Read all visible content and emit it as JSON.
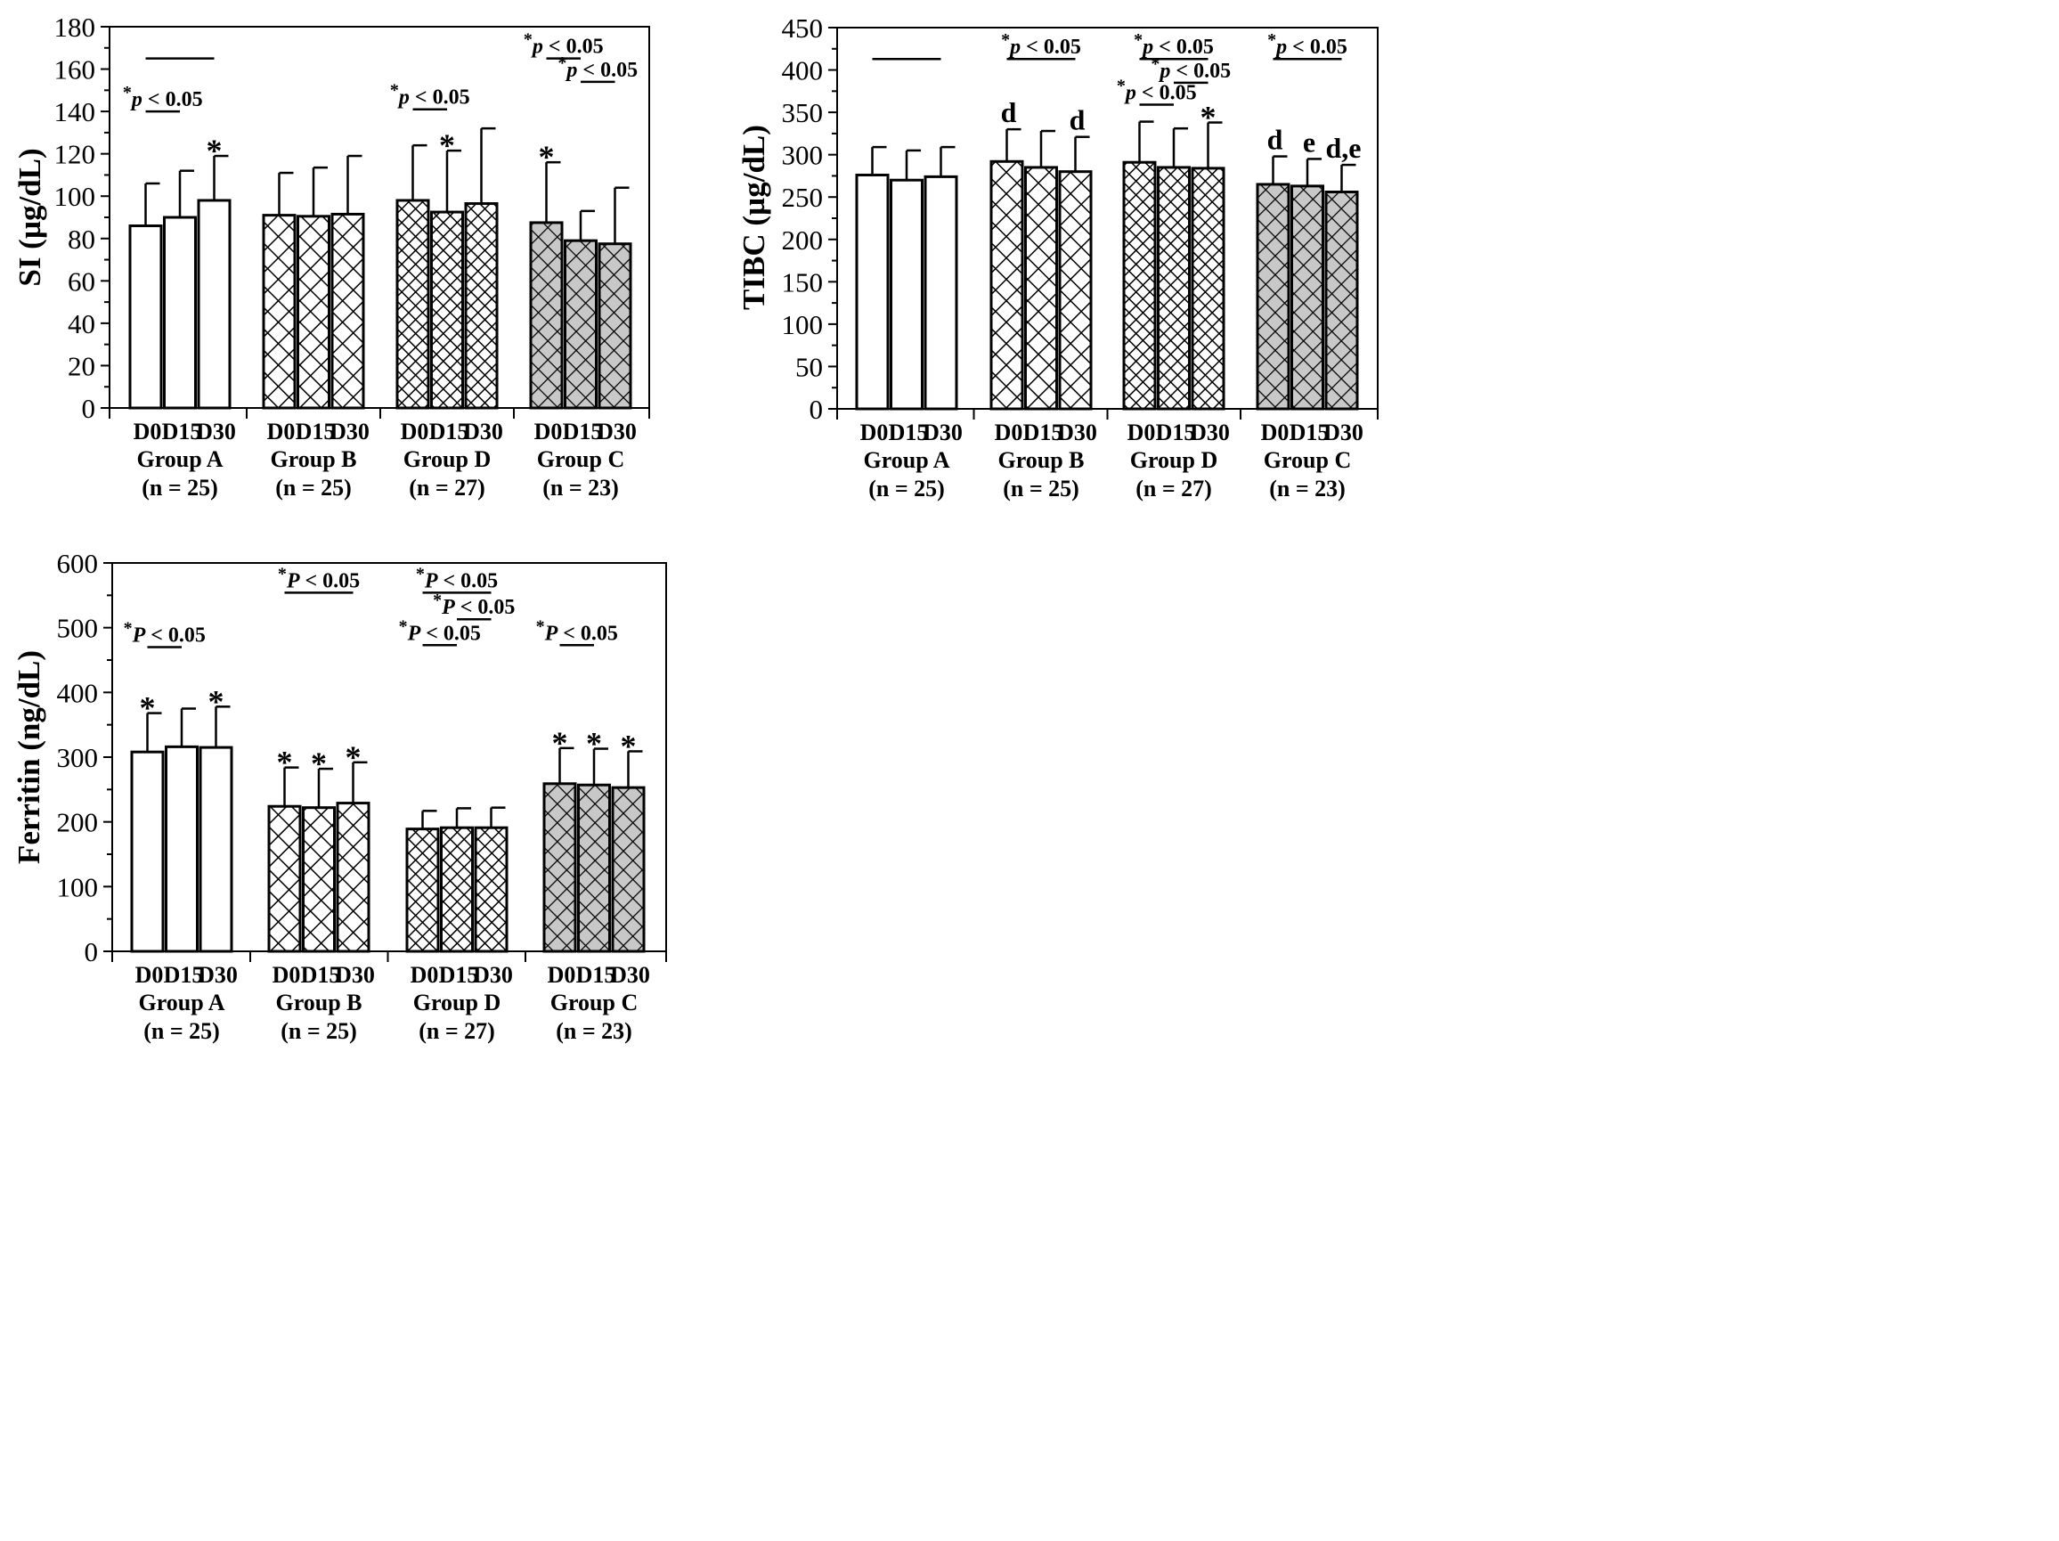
{
  "chart_data": [
    {
      "type": "bar",
      "id": "si",
      "ylabel": "SI (µg/dL)",
      "ylim": [
        0,
        180
      ],
      "yticks": [
        0,
        20,
        40,
        60,
        80,
        100,
        120,
        140,
        160,
        180
      ],
      "groups": [
        {
          "name": "Group A",
          "n": "(n = 25)",
          "pattern": "white",
          "bars": [
            {
              "label": "D0",
              "value": 86,
              "err": 20,
              "mark": ""
            },
            {
              "label": "D15",
              "value": 90,
              "err": 22,
              "mark": ""
            },
            {
              "label": "D30",
              "value": 98,
              "err": 21,
              "mark": "*"
            }
          ]
        },
        {
          "name": "Group B",
          "n": "(n = 25)",
          "pattern": "cross",
          "bars": [
            {
              "label": "D0",
              "value": 91,
              "err": 20,
              "mark": ""
            },
            {
              "label": "D15",
              "value": 90.5,
              "err": 23,
              "mark": ""
            },
            {
              "label": "D30",
              "value": 91.5,
              "err": 27.5,
              "mark": ""
            }
          ]
        },
        {
          "name": "Group D",
          "n": "(n = 27)",
          "pattern": "dense",
          "bars": [
            {
              "label": "D0",
              "value": 98,
              "err": 26,
              "mark": ""
            },
            {
              "label": "D15",
              "value": 92.5,
              "err": 29,
              "mark": "*"
            },
            {
              "label": "D30",
              "value": 96.5,
              "err": 35.5,
              "mark": ""
            }
          ]
        },
        {
          "name": "Group C",
          "n": "(n = 23)",
          "pattern": "gray",
          "bars": [
            {
              "label": "D0",
              "value": 87.5,
              "err": 28.5,
              "mark": "*"
            },
            {
              "label": "D15",
              "value": 79,
              "err": 14,
              "mark": ""
            },
            {
              "label": "D30",
              "value": 77.5,
              "err": 26.5,
              "mark": ""
            }
          ]
        }
      ],
      "annotations": [
        {
          "group": 0,
          "from": 0,
          "to": 2,
          "level": 165,
          "text": ""
        },
        {
          "group": 0,
          "from": 0,
          "to": 1,
          "level": 140,
          "text": "*p < 0.05"
        },
        {
          "group": 2,
          "from": 0,
          "to": 1,
          "level": 141,
          "text": "*p < 0.05"
        },
        {
          "group": 3,
          "from": 0,
          "to": 1,
          "level": 165,
          "text": "*p < 0.05"
        },
        {
          "group": 3,
          "from": 1,
          "to": 2,
          "level": 154,
          "text": "*p < 0.05"
        }
      ]
    },
    {
      "type": "bar",
      "id": "tibc",
      "ylabel": "TIBC (µg/dL)",
      "ylim": [
        0,
        450
      ],
      "yticks": [
        0,
        50,
        100,
        150,
        200,
        250,
        300,
        350,
        400,
        450
      ],
      "groups": [
        {
          "name": "Group A",
          "n": "(n = 25)",
          "pattern": "white",
          "bars": [
            {
              "label": "D0",
              "value": 276,
              "err": 33,
              "mark": ""
            },
            {
              "label": "D15",
              "value": 270,
              "err": 35,
              "mark": ""
            },
            {
              "label": "D30",
              "value": 274,
              "err": 35,
              "mark": ""
            }
          ]
        },
        {
          "name": "Group B",
          "n": "(n = 25)",
          "pattern": "cross",
          "bars": [
            {
              "label": "D0",
              "value": 292,
              "err": 38,
              "mark": "d"
            },
            {
              "label": "D15",
              "value": 285,
              "err": 43,
              "mark": ""
            },
            {
              "label": "D30",
              "value": 280,
              "err": 41,
              "mark": "d"
            }
          ]
        },
        {
          "name": "Group D",
          "n": "(n = 27)",
          "pattern": "dense",
          "bars": [
            {
              "label": "D0",
              "value": 291,
              "err": 48,
              "mark": ""
            },
            {
              "label": "D15",
              "value": 285,
              "err": 46,
              "mark": ""
            },
            {
              "label": "D30",
              "value": 284,
              "err": 54,
              "mark": "*"
            }
          ]
        },
        {
          "name": "Group C",
          "n": "(n = 23)",
          "pattern": "gray",
          "bars": [
            {
              "label": "D0",
              "value": 265,
              "err": 33,
              "mark": "d"
            },
            {
              "label": "D15",
              "value": 263,
              "err": 32,
              "mark": "e"
            },
            {
              "label": "D30",
              "value": 256,
              "err": 32,
              "mark": "d,e"
            }
          ]
        }
      ],
      "annotations": [
        {
          "group": 0,
          "from": 0,
          "to": 2,
          "level": 413,
          "text": ""
        },
        {
          "group": 1,
          "from": 0,
          "to": 2,
          "level": 413,
          "text": "*p < 0.05"
        },
        {
          "group": 2,
          "from": 0,
          "to": 2,
          "level": 413,
          "text": "*p < 0.05"
        },
        {
          "group": 2,
          "from": 1,
          "to": 2,
          "level": 385,
          "text": "*p < 0.05"
        },
        {
          "group": 2,
          "from": 0,
          "to": 1,
          "level": 359,
          "text": "*p < 0.05"
        },
        {
          "group": 3,
          "from": 0,
          "to": 2,
          "level": 413,
          "text": "*p < 0.05"
        }
      ]
    },
    {
      "type": "bar",
      "id": "ferritin",
      "ylabel": "Ferritin (ng/dL)",
      "ylim": [
        0,
        600
      ],
      "yticks": [
        0,
        100,
        200,
        300,
        400,
        500,
        600
      ],
      "groups": [
        {
          "name": "Group A",
          "n": "(n = 25)",
          "pattern": "white",
          "bars": [
            {
              "label": "D0",
              "value": 308,
              "err": 60,
              "mark": "*"
            },
            {
              "label": "D15",
              "value": 316,
              "err": 59,
              "mark": ""
            },
            {
              "label": "D30",
              "value": 315,
              "err": 63,
              "mark": "*"
            }
          ]
        },
        {
          "name": "Group B",
          "n": "(n = 25)",
          "pattern": "cross",
          "bars": [
            {
              "label": "D0",
              "value": 224,
              "err": 60,
              "mark": "*"
            },
            {
              "label": "D15",
              "value": 222,
              "err": 60,
              "mark": "*"
            },
            {
              "label": "D30",
              "value": 229,
              "err": 63,
              "mark": "*"
            }
          ]
        },
        {
          "name": "Group D",
          "n": "(n = 27)",
          "pattern": "dense",
          "bars": [
            {
              "label": "D0",
              "value": 189,
              "err": 28,
              "mark": ""
            },
            {
              "label": "D15",
              "value": 191,
              "err": 30,
              "mark": ""
            },
            {
              "label": "D30",
              "value": 191,
              "err": 31,
              "mark": ""
            }
          ]
        },
        {
          "name": "Group C",
          "n": "(n = 23)",
          "pattern": "gray",
          "bars": [
            {
              "label": "D0",
              "value": 259,
              "err": 55,
              "mark": "*"
            },
            {
              "label": "D15",
              "value": 257,
              "err": 56,
              "mark": "*"
            },
            {
              "label": "D30",
              "value": 253,
              "err": 56,
              "mark": "*"
            }
          ]
        }
      ],
      "annotations": [
        {
          "group": 0,
          "from": 0,
          "to": 1,
          "level": 470,
          "text": "*P < 0.05"
        },
        {
          "group": 1,
          "from": 0,
          "to": 2,
          "level": 554,
          "text": "*P < 0.05"
        },
        {
          "group": 2,
          "from": 0,
          "to": 2,
          "level": 554,
          "text": "*P < 0.05"
        },
        {
          "group": 2,
          "from": 1,
          "to": 2,
          "level": 513,
          "text": "*P < 0.05"
        },
        {
          "group": 2,
          "from": 0,
          "to": 1,
          "level": 473,
          "text": "*P < 0.05"
        },
        {
          "group": 3,
          "from": 0,
          "to": 1,
          "level": 473,
          "text": "*P < 0.05"
        }
      ]
    }
  ],
  "colors": {
    "axis": "#000000",
    "bar_fill": "#ffffff",
    "gray_fill": "#c8c8c8",
    "hatch": "#000000"
  }
}
